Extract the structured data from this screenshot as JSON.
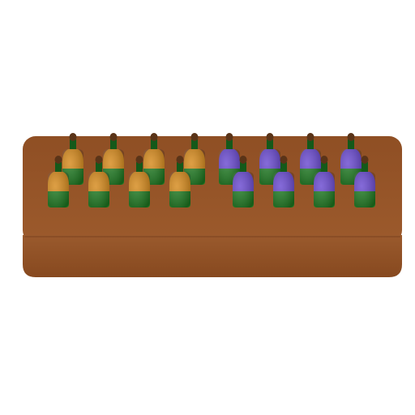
{
  "scene": {
    "background": "#ffffff",
    "tray": {
      "top_color": "#98562a",
      "front_color": "#8e5226",
      "edge_color": "#6f3d1b"
    },
    "bottles": {
      "body_color": "#1f7a22",
      "body_dark": "#14591a",
      "cap_color": "#5a3418",
      "back_row": [
        "orange",
        "orange",
        "orange",
        "orange",
        "purple",
        "purple",
        "purple",
        "purple"
      ],
      "front_row": [
        "orange",
        "orange",
        "orange",
        "orange",
        "purple",
        "purple",
        "purple",
        "purple"
      ],
      "label_colors": {
        "orange": "#d68a1c",
        "purple": "#6a4ad0"
      }
    }
  }
}
